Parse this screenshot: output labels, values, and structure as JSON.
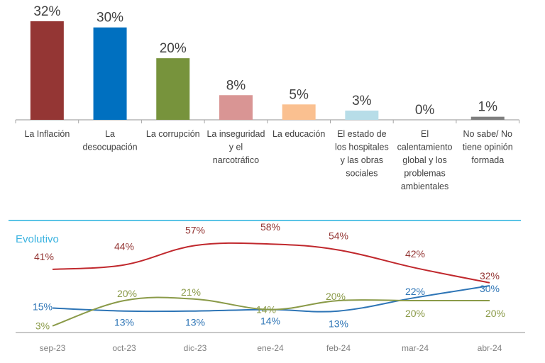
{
  "chart_data": [
    {
      "type": "bar",
      "title": "",
      "xlabel": "",
      "ylabel": "",
      "ylim": [
        0,
        32
      ],
      "grid": false,
      "categories": [
        "La Inflación",
        "La desocupación",
        "La corrupción",
        "La inseguridad y el narcotráfico",
        "La educación",
        "El estado de los hospitales y las obras sociales",
        "El calentamiento global y los problemas ambientales",
        "No sabe/ No tiene opinión formada"
      ],
      "category_lines": [
        [
          "La Inflación"
        ],
        [
          "La",
          "desocupación"
        ],
        [
          "La corrupción"
        ],
        [
          "La inseguridad",
          "y el",
          "narcotráfico"
        ],
        [
          "La educación"
        ],
        [
          "El estado de",
          "los hospitales",
          "y las obras",
          "sociales"
        ],
        [
          "El",
          "calentamiento",
          "global y los",
          "problemas",
          "ambientales"
        ],
        [
          "No sabe/ No",
          "tiene opinión",
          "formada"
        ]
      ],
      "values": [
        32,
        30,
        20,
        8,
        5,
        3,
        0,
        1
      ],
      "value_labels": [
        "32%",
        "30%",
        "20%",
        "8%",
        "5%",
        "3%",
        "0%",
        "1%"
      ],
      "colors": [
        "#943634",
        "#0070c0",
        "#77933c",
        "#d99594",
        "#fac090",
        "#b7dde8",
        "#bfbfbf",
        "#7f7f7f"
      ]
    },
    {
      "type": "line",
      "title": "Evolutivo",
      "xlabel": "",
      "ylabel": "",
      "grid": false,
      "legend": "none",
      "x": [
        "sep-23",
        "oct-23",
        "dic-23",
        "ene-24",
        "feb-24",
        "mar-24",
        "abr-24"
      ],
      "ylim": [
        0,
        60
      ],
      "series": [
        {
          "name": "La Inflación",
          "values": [
            41,
            44,
            57,
            58,
            54,
            42,
            32
          ],
          "labels": [
            "41%",
            "44%",
            "57%",
            "58%",
            "54%",
            "42%",
            "32%"
          ],
          "color": "#c0282d",
          "label_color": "#943634"
        },
        {
          "name": "La desocupación",
          "values": [
            15,
            13,
            13,
            14,
            13,
            22,
            30
          ],
          "labels": [
            "15%",
            "13%",
            "13%",
            "14%",
            "13%",
            "22%",
            "30%"
          ],
          "color": "#2e75b6",
          "label_color": "#2e75b6"
        },
        {
          "name": "La corrupción",
          "values": [
            3,
            20,
            21,
            14,
            20,
            20,
            20
          ],
          "labels": [
            "3%",
            "20%",
            "21%",
            "14%",
            "20%",
            "20%",
            "20%"
          ],
          "color": "#8a9a48",
          "label_color": "#8a9a48"
        }
      ]
    }
  ],
  "section": {
    "title": "Evolutivo",
    "accent_color": "#5bc4e6"
  }
}
